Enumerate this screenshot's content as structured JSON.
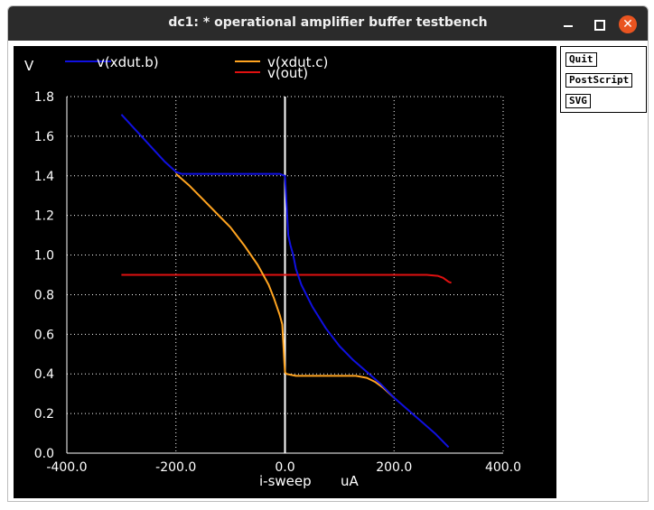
{
  "window": {
    "title": "dc1: * operational amplifier buffer testbench",
    "close_glyph": "✕"
  },
  "side_buttons": {
    "quit": "Quit",
    "postscript": "PostScript",
    "svg": "SVG"
  },
  "colors": {
    "background": "#000000",
    "grid": "#ffffff",
    "text": "#ffffff",
    "series_b": "#1010e0",
    "series_c": "#ffa420",
    "series_out": "#e01010"
  },
  "chart_data": {
    "type": "line",
    "ylabel": "V",
    "xlabel": "i-sweep",
    "xunit": "uA",
    "xlim": [
      -400,
      400
    ],
    "ylim": [
      0,
      1.8
    ],
    "x_ticks": [
      "-400.0",
      "-200.0",
      "0.0",
      "200.0",
      "400.0"
    ],
    "y_ticks": [
      "0.0",
      "0.2",
      "0.4",
      "0.6",
      "0.8",
      "1.0",
      "1.2",
      "1.4",
      "1.6",
      "1.8"
    ],
    "grid": "dotted",
    "legend_position": "top",
    "series": [
      {
        "name": "v(xdut.b)",
        "color_key": "series_b",
        "points": [
          [
            -300,
            1.71
          ],
          [
            -280,
            1.65
          ],
          [
            -260,
            1.59
          ],
          [
            -240,
            1.53
          ],
          [
            -220,
            1.47
          ],
          [
            -200,
            1.42
          ],
          [
            -190,
            1.41
          ],
          [
            -150,
            1.41
          ],
          [
            -100,
            1.41
          ],
          [
            -50,
            1.41
          ],
          [
            -10,
            1.41
          ],
          [
            0,
            1.4
          ],
          [
            2,
            1.3
          ],
          [
            4,
            1.2
          ],
          [
            6,
            1.1
          ],
          [
            10,
            1.05
          ],
          [
            15,
            1.0
          ],
          [
            20,
            0.93
          ],
          [
            30,
            0.85
          ],
          [
            50,
            0.74
          ],
          [
            75,
            0.63
          ],
          [
            100,
            0.54
          ],
          [
            125,
            0.47
          ],
          [
            150,
            0.41
          ],
          [
            175,
            0.35
          ],
          [
            200,
            0.28
          ],
          [
            225,
            0.22
          ],
          [
            250,
            0.16
          ],
          [
            275,
            0.1
          ],
          [
            300,
            0.03
          ]
        ]
      },
      {
        "name": "v(xdut.c)",
        "color_key": "series_c",
        "points": [
          [
            -200,
            1.41
          ],
          [
            -175,
            1.35
          ],
          [
            -150,
            1.28
          ],
          [
            -125,
            1.21
          ],
          [
            -100,
            1.14
          ],
          [
            -75,
            1.05
          ],
          [
            -50,
            0.95
          ],
          [
            -40,
            0.9
          ],
          [
            -30,
            0.85
          ],
          [
            -20,
            0.78
          ],
          [
            -10,
            0.7
          ],
          [
            -5,
            0.65
          ],
          [
            -3,
            0.55
          ],
          [
            -1,
            0.45
          ],
          [
            0,
            0.41
          ],
          [
            2,
            0.4
          ],
          [
            20,
            0.39
          ],
          [
            50,
            0.39
          ],
          [
            100,
            0.39
          ],
          [
            130,
            0.39
          ],
          [
            150,
            0.38
          ],
          [
            165,
            0.36
          ],
          [
            180,
            0.33
          ],
          [
            200,
            0.28
          ]
        ]
      },
      {
        "name": "v(out)",
        "color_key": "series_out",
        "points": [
          [
            -300,
            0.9
          ],
          [
            -200,
            0.9
          ],
          [
            -100,
            0.9
          ],
          [
            0,
            0.9
          ],
          [
            100,
            0.9
          ],
          [
            200,
            0.9
          ],
          [
            260,
            0.9
          ],
          [
            280,
            0.895
          ],
          [
            290,
            0.885
          ],
          [
            300,
            0.865
          ],
          [
            305,
            0.86
          ]
        ]
      }
    ]
  }
}
